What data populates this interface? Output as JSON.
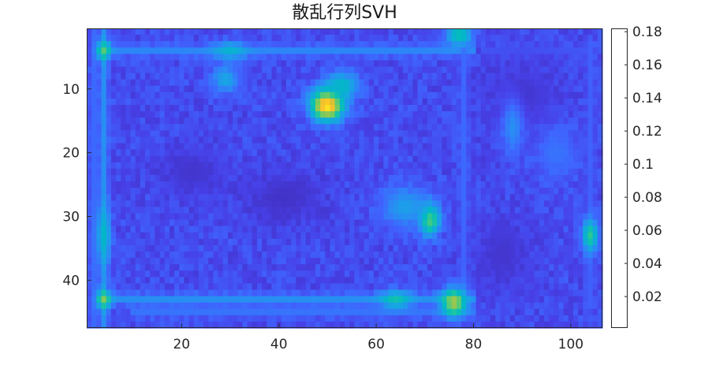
{
  "chart_data": {
    "type": "heatmap",
    "title": "散乱行列SVH",
    "xlabel": "",
    "ylabel": "",
    "x_range": [
      1,
      106
    ],
    "y_range": [
      1,
      47
    ],
    "y_direction": "reversed",
    "x_ticks": [
      20,
      40,
      60,
      80,
      100
    ],
    "y_ticks": [
      10,
      20,
      30,
      40
    ],
    "grid": false,
    "colormap": "parula",
    "colorbar": {
      "location": "right",
      "ticks": [
        0.02,
        0.04,
        0.06,
        0.08,
        0.1,
        0.12,
        0.14,
        0.16,
        0.18
      ],
      "tick_labels": [
        "0.02",
        "0.04",
        "0.06",
        "0.08",
        "0.1",
        "0.12",
        "0.14",
        "0.16",
        "0.18"
      ],
      "range": [
        0.001,
        0.182
      ]
    },
    "value_range": [
      0.001,
      0.182
    ],
    "background_value": 0.025,
    "features": [
      {
        "kind": "hline",
        "y": 4,
        "x0": 3,
        "x1": 80,
        "value": 0.055
      },
      {
        "kind": "hline",
        "y": 43,
        "x0": 3,
        "x1": 80,
        "value": 0.06
      },
      {
        "kind": "hline",
        "y": 45,
        "x0": 10,
        "x1": 80,
        "value": 0.045
      },
      {
        "kind": "hline",
        "y": 4,
        "x0": 82,
        "x1": 104,
        "value": 0.03
      },
      {
        "kind": "vline",
        "x": 4,
        "y0": 1,
        "y1": 47,
        "value": 0.06
      },
      {
        "kind": "vline",
        "x": 2,
        "y0": 1,
        "y1": 47,
        "value": 0.04
      },
      {
        "kind": "vline",
        "x": 104,
        "y0": 3,
        "y1": 44,
        "value": 0.035
      },
      {
        "kind": "vline",
        "x": 78,
        "y0": 1,
        "y1": 45,
        "value": 0.04
      },
      {
        "kind": "blob",
        "x": 50,
        "y": 12.5,
        "sx": 2.4,
        "sy": 1.8,
        "value": 0.182
      },
      {
        "kind": "blob",
        "x": 53,
        "y": 9.5,
        "sx": 2.5,
        "sy": 1.5,
        "value": 0.09
      },
      {
        "kind": "blob",
        "x": 71,
        "y": 30.5,
        "sx": 1.5,
        "sy": 1.8,
        "value": 0.13
      },
      {
        "kind": "blob",
        "x": 66,
        "y": 28.5,
        "sx": 3.5,
        "sy": 2.2,
        "value": 0.07
      },
      {
        "kind": "blob",
        "x": 76,
        "y": 43.5,
        "sx": 1.8,
        "sy": 1.6,
        "value": 0.14
      },
      {
        "kind": "blob",
        "x": 64,
        "y": 43,
        "sx": 2.2,
        "sy": 1.0,
        "value": 0.1
      },
      {
        "kind": "blob",
        "x": 4,
        "y": 43,
        "sx": 1.0,
        "sy": 1.0,
        "value": 0.13
      },
      {
        "kind": "blob",
        "x": 4,
        "y": 4,
        "sx": 1.0,
        "sy": 1.0,
        "value": 0.12
      },
      {
        "kind": "blob",
        "x": 4,
        "y": 33,
        "sx": 1.0,
        "sy": 3.0,
        "value": 0.09
      },
      {
        "kind": "blob",
        "x": 104,
        "y": 33,
        "sx": 1.2,
        "sy": 1.8,
        "value": 0.11
      },
      {
        "kind": "blob",
        "x": 77,
        "y": 1.5,
        "sx": 2.0,
        "sy": 1.2,
        "value": 0.1
      },
      {
        "kind": "blob",
        "x": 29,
        "y": 8.5,
        "sx": 2.0,
        "sy": 1.5,
        "value": 0.075
      },
      {
        "kind": "blob",
        "x": 30,
        "y": 4,
        "sx": 2.5,
        "sy": 1.0,
        "value": 0.085
      },
      {
        "kind": "blob",
        "x": 41,
        "y": 27,
        "sx": 6.0,
        "sy": 3.0,
        "value": 0.01
      },
      {
        "kind": "blob",
        "x": 22,
        "y": 23,
        "sx": 5.0,
        "sy": 3.0,
        "value": 0.012
      },
      {
        "kind": "blob",
        "x": 90,
        "y": 11,
        "sx": 5.0,
        "sy": 4.0,
        "value": 0.012
      },
      {
        "kind": "blob",
        "x": 86,
        "y": 36,
        "sx": 4.0,
        "sy": 4.0,
        "value": 0.012
      },
      {
        "kind": "blob",
        "x": 97,
        "y": 20,
        "sx": 3.0,
        "sy": 3.0,
        "value": 0.045
      },
      {
        "kind": "blob",
        "x": 88,
        "y": 16,
        "sx": 1.5,
        "sy": 3.0,
        "value": 0.06
      }
    ]
  }
}
